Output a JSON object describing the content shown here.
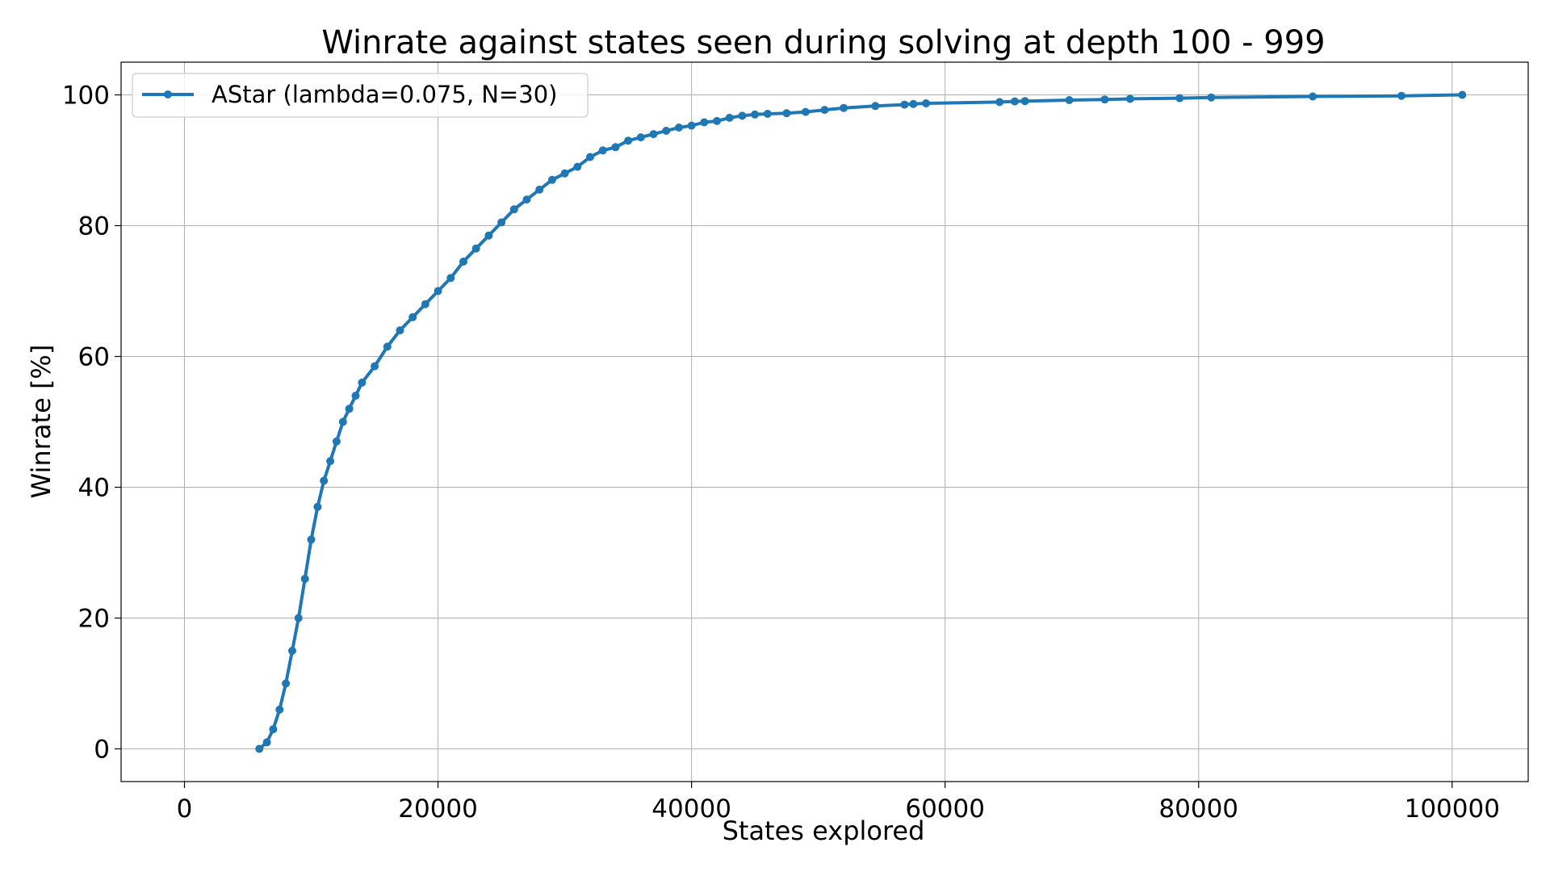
{
  "chart_data": {
    "type": "line",
    "title": "Winrate against states seen during solving at depth 100 - 999",
    "xlabel": "States explored",
    "ylabel": "Winrate [%]",
    "xlim": [
      -5000,
      106000
    ],
    "ylim": [
      -5,
      105
    ],
    "xticks": [
      0,
      20000,
      40000,
      60000,
      80000,
      100000
    ],
    "xtick_labels": [
      "0",
      "20000",
      "40000",
      "60000",
      "80000",
      "100000"
    ],
    "yticks": [
      0,
      20,
      40,
      60,
      80,
      100
    ],
    "ytick_labels": [
      "0",
      "20",
      "40",
      "60",
      "80",
      "100"
    ],
    "grid": true,
    "legend_position": "top-left",
    "colors": {
      "series": "#1f77b4",
      "grid": "#b0b0b0",
      "axes": "#000000"
    },
    "series": [
      {
        "name": "AStar (lambda=0.075, N=30)",
        "marker": "circle",
        "x": [
          5900,
          6500,
          7000,
          7500,
          8000,
          8500,
          9000,
          9500,
          10000,
          10500,
          11000,
          11500,
          12000,
          12500,
          13000,
          13500,
          14000,
          15000,
          16000,
          17000,
          18000,
          19000,
          20000,
          21000,
          22000,
          23000,
          24000,
          25000,
          26000,
          27000,
          28000,
          29000,
          30000,
          31000,
          32000,
          33000,
          34000,
          35000,
          36000,
          37000,
          38000,
          39000,
          40000,
          41000,
          42000,
          43000,
          44000,
          45000,
          46000,
          47500,
          49000,
          50500,
          52000,
          54500,
          56800,
          57500,
          58500,
          64300,
          65500,
          66300,
          69800,
          72600,
          74600,
          78500,
          81000,
          89000,
          96000,
          100800
        ],
        "y": [
          0,
          1,
          3,
          6,
          10,
          15,
          20,
          26,
          32,
          37,
          41,
          44,
          47,
          50,
          52,
          54,
          56,
          58.5,
          61.5,
          64,
          66,
          68,
          70,
          72,
          74.5,
          76.5,
          78.5,
          80.5,
          82.5,
          84,
          85.5,
          87,
          88,
          89,
          90.5,
          91.5,
          92,
          93,
          93.5,
          94,
          94.5,
          95,
          95.3,
          95.8,
          96,
          96.5,
          96.8,
          97,
          97.1,
          97.2,
          97.4,
          97.7,
          98,
          98.3,
          98.5,
          98.6,
          98.7,
          98.9,
          99,
          99.05,
          99.2,
          99.3,
          99.4,
          99.5,
          99.6,
          99.75,
          99.85,
          100
        ]
      }
    ]
  }
}
